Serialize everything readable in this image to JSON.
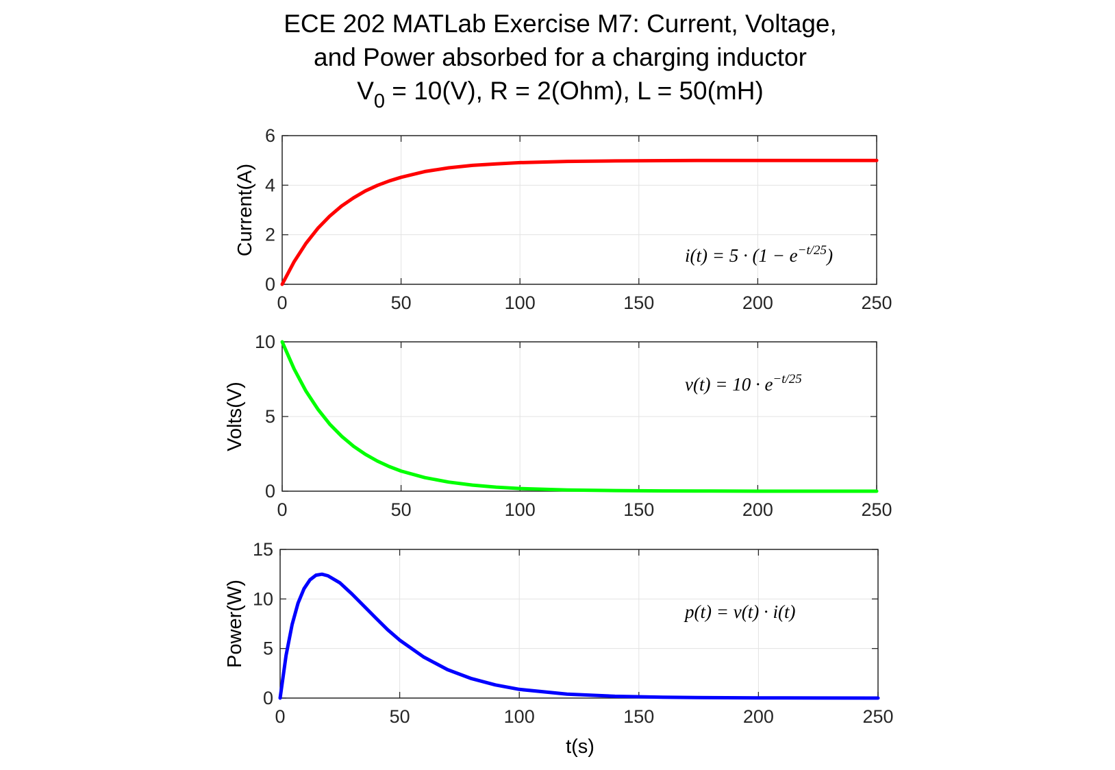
{
  "figure": {
    "title_line1": "ECE 202 MATLab Exercise M7: Current, Voltage,",
    "title_line2": "and Power absorbed for a charging inductor",
    "title_line3_main": "V",
    "title_line3_sub": "0",
    "title_line3_rest": " = 10(V), R = 2(Ohm), L = 50(mH)",
    "xlabel": "t(s)"
  },
  "chart_data": [
    {
      "type": "line",
      "ylabel": "Current(A)",
      "xlim": [
        0,
        250
      ],
      "ylim": [
        0,
        6
      ],
      "xticks": [
        0,
        50,
        100,
        150,
        200,
        250
      ],
      "yticks": [
        0,
        2,
        4,
        6
      ],
      "grid": true,
      "color": "#ff0000",
      "annotation": "i(t) = 5 · (1 − e^(−t/25))",
      "series": [
        {
          "x": [
            0,
            5,
            10,
            15,
            20,
            25,
            30,
            35,
            40,
            45,
            50,
            60,
            70,
            80,
            90,
            100,
            120,
            140,
            160,
            180,
            200,
            225,
            250
          ],
          "values": [
            0,
            0.91,
            1.65,
            2.26,
            2.75,
            3.16,
            3.49,
            3.77,
            3.99,
            4.17,
            4.32,
            4.55,
            4.7,
            4.8,
            4.86,
            4.91,
            4.96,
            4.98,
            4.99,
            5.0,
            5.0,
            5.0,
            5.0
          ]
        }
      ]
    },
    {
      "type": "line",
      "ylabel": "Volts(V)",
      "xlim": [
        0,
        250
      ],
      "ylim": [
        0,
        10
      ],
      "xticks": [
        0,
        50,
        100,
        150,
        200,
        250
      ],
      "yticks": [
        0,
        5,
        10
      ],
      "grid": true,
      "color": "#00ff00",
      "annotation": "v(t) = 10 · e^(−t/25)",
      "series": [
        {
          "x": [
            0,
            5,
            10,
            15,
            20,
            25,
            30,
            35,
            40,
            45,
            50,
            60,
            70,
            80,
            90,
            100,
            120,
            140,
            160,
            180,
            200,
            225,
            250
          ],
          "values": [
            10,
            8.19,
            6.7,
            5.49,
            4.49,
            3.68,
            3.01,
            2.47,
            2.02,
            1.65,
            1.35,
            0.91,
            0.61,
            0.41,
            0.27,
            0.18,
            0.08,
            0.04,
            0.02,
            0.01,
            0.0,
            0.0,
            0.0
          ]
        }
      ]
    },
    {
      "type": "line",
      "ylabel": "Power(W)",
      "xlim": [
        0,
        250
      ],
      "ylim": [
        0,
        15
      ],
      "xticks": [
        0,
        50,
        100,
        150,
        200,
        250
      ],
      "yticks": [
        0,
        5,
        10,
        15
      ],
      "grid": true,
      "color": "#0000ff",
      "annotation": "p(t) = v(t) · i(t)",
      "series": [
        {
          "x": [
            0,
            2.5,
            5,
            7.5,
            10,
            12.5,
            15,
            17.5,
            20,
            25,
            30,
            35,
            40,
            45,
            50,
            60,
            70,
            80,
            90,
            100,
            120,
            140,
            160,
            180,
            200,
            225,
            250
          ],
          "values": [
            0,
            4.31,
            7.42,
            9.59,
            11.04,
            11.93,
            12.4,
            12.5,
            12.34,
            11.63,
            10.51,
            9.3,
            8.08,
            6.89,
            5.85,
            4.15,
            2.87,
            1.96,
            1.33,
            0.88,
            0.4,
            0.18,
            0.08,
            0.04,
            0.02,
            0.01,
            0.0
          ]
        }
      ]
    }
  ]
}
